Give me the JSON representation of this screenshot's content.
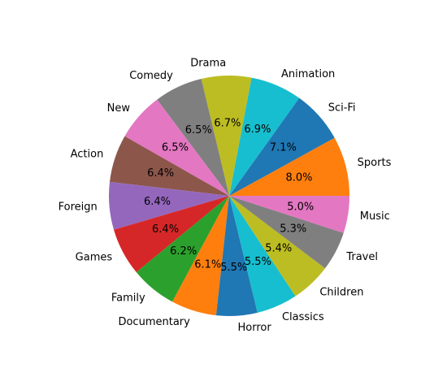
{
  "chart_data": {
    "type": "pie",
    "title": "",
    "start_angle_deg": 0,
    "direction": "counterclockwise",
    "slices": [
      {
        "label": "Sports",
        "value": 8.0,
        "display": "8.0%",
        "color": "#ff7f0e"
      },
      {
        "label": "Sci-Fi",
        "value": 7.1,
        "display": "7.1%",
        "color": "#1f77b4"
      },
      {
        "label": "Animation",
        "value": 6.9,
        "display": "6.9%",
        "color": "#17becf"
      },
      {
        "label": "Drama",
        "value": 6.7,
        "display": "6.7%",
        "color": "#bcbd22"
      },
      {
        "label": "Comedy",
        "value": 6.5,
        "display": "6.5%",
        "color": "#7f7f7f"
      },
      {
        "label": "New",
        "value": 6.5,
        "display": "6.5%",
        "color": "#e377c2"
      },
      {
        "label": "Action",
        "value": 6.4,
        "display": "6.4%",
        "color": "#8c564b"
      },
      {
        "label": "Foreign",
        "value": 6.4,
        "display": "6.4%",
        "color": "#9467bd"
      },
      {
        "label": "Games",
        "value": 6.4,
        "display": "6.4%",
        "color": "#d62728"
      },
      {
        "label": "Family",
        "value": 6.2,
        "display": "6.2%",
        "color": "#2ca02c"
      },
      {
        "label": "Documentary",
        "value": 6.1,
        "display": "6.1%",
        "color": "#ff7f0e"
      },
      {
        "label": "Horror",
        "value": 5.5,
        "display": "5.5%",
        "color": "#1f77b4"
      },
      {
        "label": "Classics",
        "value": 5.5,
        "display": "5.5%",
        "color": "#17becf"
      },
      {
        "label": "Children",
        "value": 5.4,
        "display": "5.4%",
        "color": "#bcbd22"
      },
      {
        "label": "Travel",
        "value": 5.3,
        "display": "5.3%",
        "color": "#7f7f7f"
      },
      {
        "label": "Music",
        "value": 5.0,
        "display": "5.0%",
        "color": "#e377c2"
      }
    ]
  }
}
